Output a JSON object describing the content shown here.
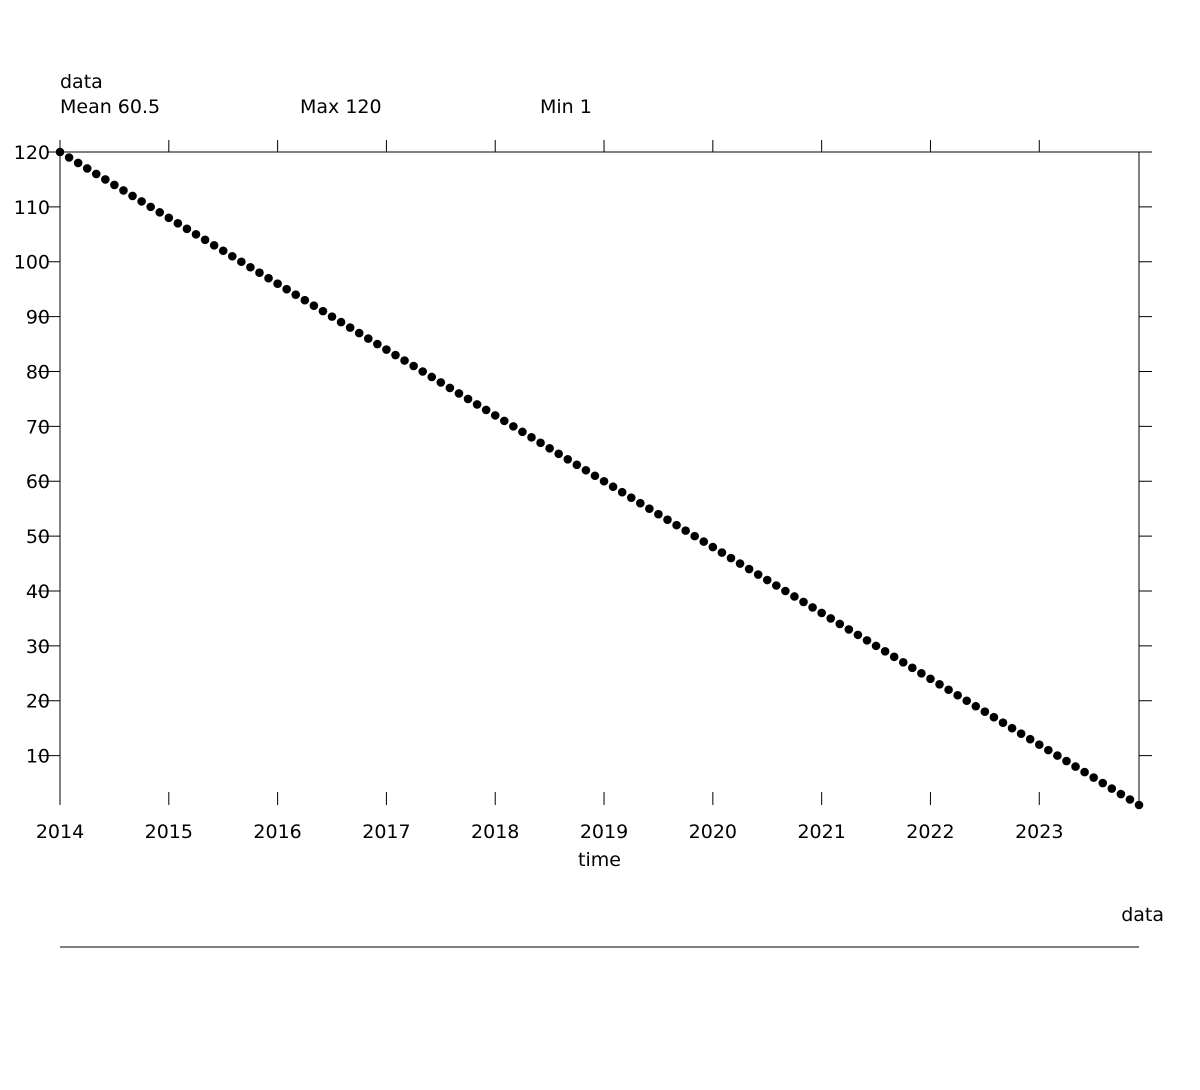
{
  "header": {
    "series_label": "data",
    "stats": [
      {
        "label": "Mean 60.5"
      },
      {
        "label": "Max 120"
      },
      {
        "label": "Min 1"
      }
    ]
  },
  "legend": {
    "label": "data"
  },
  "chart_data": {
    "type": "scatter",
    "series_label": "data",
    "xlabel": "time",
    "ylabel": "",
    "x_ticks": [
      "2014",
      "2015",
      "2016",
      "2017",
      "2018",
      "2019",
      "2020",
      "2021",
      "2022",
      "2023"
    ],
    "y_ticks": [
      10,
      20,
      30,
      40,
      50,
      60,
      70,
      80,
      90,
      100,
      110,
      120
    ],
    "y_tick_labels": [
      "10",
      "20",
      "30",
      "40",
      "50",
      "60",
      "70",
      "80",
      "90",
      "100",
      "110",
      "120"
    ],
    "xlim": [
      "2014-01",
      "2023-12"
    ],
    "ylim": [
      1,
      120
    ],
    "x_start": "2014-01",
    "x_frequency": "monthly",
    "series": [
      {
        "name": "data",
        "marker_color": "#000000",
        "values": [
          120,
          119,
          118,
          117,
          116,
          115,
          114,
          113,
          112,
          111,
          110,
          109,
          108,
          107,
          106,
          105,
          104,
          103,
          102,
          101,
          100,
          99,
          98,
          97,
          96,
          95,
          94,
          93,
          92,
          91,
          90,
          89,
          88,
          87,
          86,
          85,
          84,
          83,
          82,
          81,
          80,
          79,
          78,
          77,
          76,
          75,
          74,
          73,
          72,
          71,
          70,
          69,
          68,
          67,
          66,
          65,
          64,
          63,
          62,
          61,
          60,
          59,
          58,
          57,
          56,
          55,
          54,
          53,
          52,
          51,
          50,
          49,
          48,
          47,
          46,
          45,
          44,
          43,
          42,
          41,
          40,
          39,
          38,
          37,
          36,
          35,
          34,
          33,
          32,
          31,
          30,
          29,
          28,
          27,
          26,
          25,
          24,
          23,
          22,
          21,
          20,
          19,
          18,
          17,
          16,
          15,
          14,
          13,
          12,
          11,
          10,
          9,
          8,
          7,
          6,
          5,
          4,
          3,
          2,
          1
        ]
      }
    ],
    "grid": false,
    "legend_position": "bottom-right"
  }
}
